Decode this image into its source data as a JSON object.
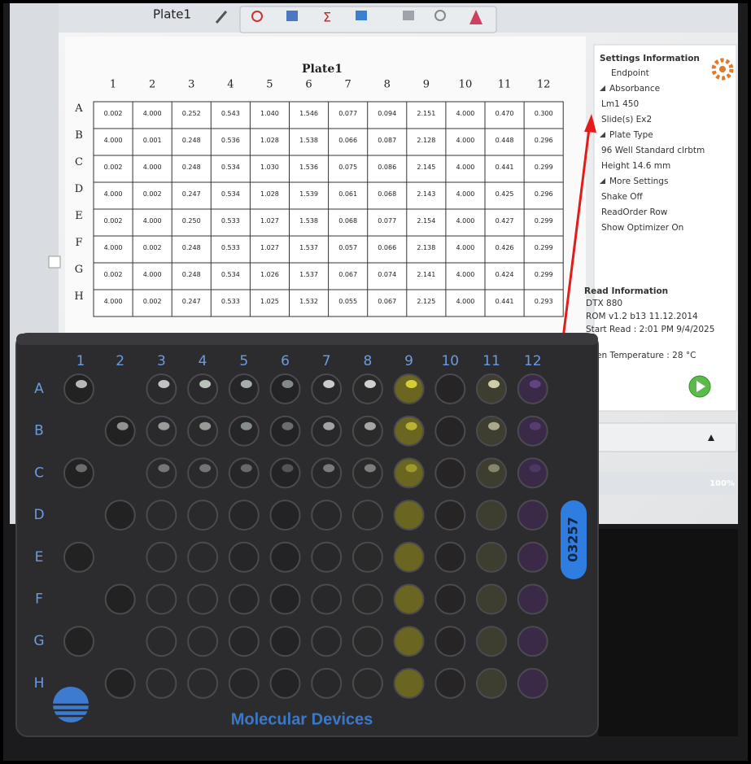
{
  "toolbar": {
    "tab": "Plate1"
  },
  "plate_table": {
    "title": "Plate1",
    "columns": [
      "1",
      "2",
      "3",
      "4",
      "5",
      "6",
      "7",
      "8",
      "9",
      "10",
      "11",
      "12"
    ],
    "rows": [
      {
        "label": "A",
        "values": [
          "0.002",
          "4.000",
          "0.252",
          "0.543",
          "1.040",
          "1.546",
          "0.077",
          "0.094",
          "2.151",
          "4.000",
          "0.470",
          "0.300"
        ]
      },
      {
        "label": "B",
        "values": [
          "4.000",
          "0.001",
          "0.248",
          "0.536",
          "1.028",
          "1.538",
          "0.066",
          "0.087",
          "2.128",
          "4.000",
          "0.448",
          "0.296"
        ]
      },
      {
        "label": "C",
        "values": [
          "0.002",
          "4.000",
          "0.248",
          "0.534",
          "1.030",
          "1.536",
          "0.075",
          "0.086",
          "2.145",
          "4.000",
          "0.441",
          "0.299"
        ]
      },
      {
        "label": "D",
        "values": [
          "4.000",
          "0.002",
          "0.247",
          "0.534",
          "1.028",
          "1.539",
          "0.061",
          "0.068",
          "2.143",
          "4.000",
          "0.425",
          "0.296"
        ]
      },
      {
        "label": "E",
        "values": [
          "0.002",
          "4.000",
          "0.250",
          "0.533",
          "1.027",
          "1.538",
          "0.068",
          "0.077",
          "2.154",
          "4.000",
          "0.427",
          "0.299"
        ]
      },
      {
        "label": "F",
        "values": [
          "4.000",
          "0.002",
          "0.248",
          "0.533",
          "1.027",
          "1.537",
          "0.057",
          "0.066",
          "2.138",
          "4.000",
          "0.426",
          "0.299"
        ]
      },
      {
        "label": "G",
        "values": [
          "0.002",
          "4.000",
          "0.248",
          "0.534",
          "1.026",
          "1.537",
          "0.067",
          "0.074",
          "2.141",
          "4.000",
          "0.424",
          "0.299"
        ]
      },
      {
        "label": "H",
        "values": [
          "4.000",
          "0.002",
          "0.247",
          "0.533",
          "1.025",
          "1.532",
          "0.055",
          "0.067",
          "2.125",
          "4.000",
          "0.441",
          "0.293"
        ]
      }
    ]
  },
  "settings": {
    "title": "Settings Information",
    "mode": "Endpoint",
    "sections": [
      {
        "heading": "Absorbance",
        "items": [
          "Lm1  450",
          "Slide(s)  Ex2"
        ]
      },
      {
        "heading": "Plate Type",
        "items": [
          "96 Well Standard clrbtm",
          "Height  14.6 mm"
        ]
      },
      {
        "heading": "More Settings",
        "items": [
          "Shake  Off",
          "ReadOrder  Row",
          "Show Optimizer  On"
        ]
      }
    ]
  },
  "read_info": {
    "title": "Read Information",
    "lines": [
      "DTX 880",
      "ROM v1.2 b13 11.12.2014",
      "Start Read : 2:01 PM 9/4/2025",
      "en Temperature : 28 °C"
    ]
  },
  "status": {
    "zoom": "100%"
  },
  "physical_plate": {
    "columns": [
      "1",
      "2",
      "3",
      "4",
      "5",
      "6",
      "7",
      "8",
      "9",
      "10",
      "11",
      "12"
    ],
    "rows": [
      "A",
      "B",
      "C",
      "D",
      "E",
      "F",
      "G",
      "H"
    ],
    "barcode": "03257",
    "brand": "Molecular Devices"
  }
}
